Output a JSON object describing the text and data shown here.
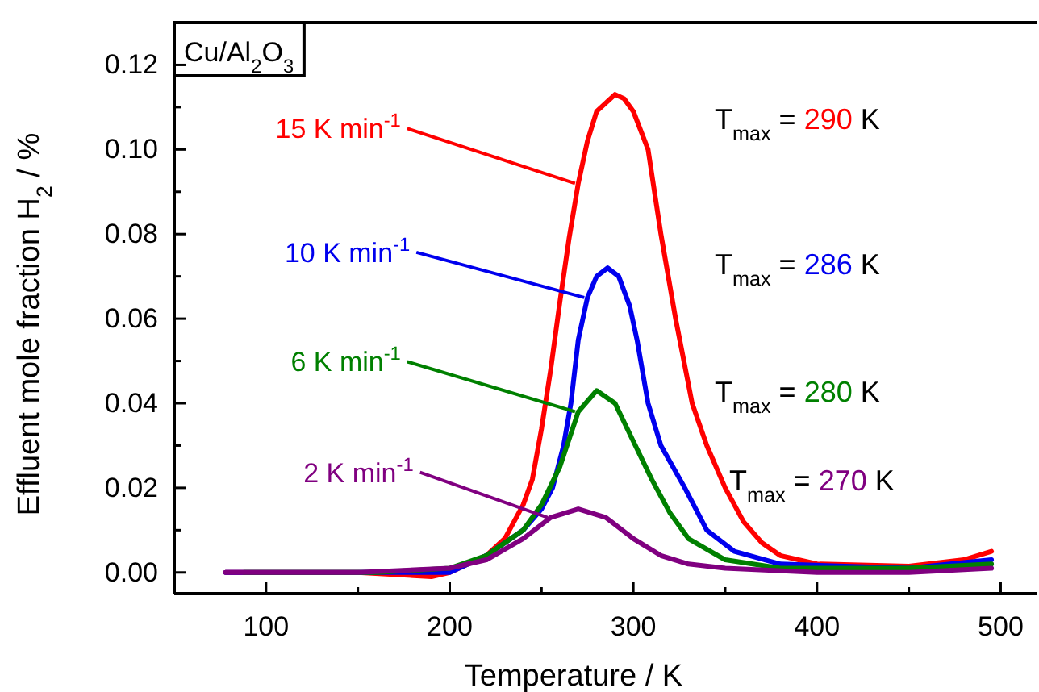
{
  "chart_data": {
    "type": "line",
    "xlabel": "Temperature / K",
    "ylabel": "Effluent mole fraction H$_{2}$ / %",
    "xlim": [
      50,
      520
    ],
    "ylim": [
      -0.005,
      0.13
    ],
    "xticks": [
      100,
      {
        "value": 150,
        "label": null
      },
      200,
      {
        "value": 250,
        "label": null
      },
      300,
      {
        "value": 350,
        "label": null
      },
      400,
      {
        "value": 450,
        "label": null
      },
      500
    ],
    "yticks": [
      {
        "value": 0,
        "label": "0.00"
      },
      {
        "value": 0.01,
        "label": null
      },
      {
        "value": 0.02,
        "label": "0.02"
      },
      {
        "value": 0.03,
        "label": null
      },
      {
        "value": 0.04,
        "label": "0.04"
      },
      {
        "value": 0.05,
        "label": null
      },
      {
        "value": 0.06,
        "label": "0.06"
      },
      {
        "value": 0.07,
        "label": null
      },
      {
        "value": 0.08,
        "label": "0.08"
      },
      {
        "value": 0.09,
        "label": null
      },
      {
        "value": 0.1,
        "label": "0.10"
      },
      {
        "value": 0.11,
        "label": null
      },
      {
        "value": 0.12,
        "label": "0.12"
      }
    ],
    "grid": false,
    "marker": "none",
    "line_style": "solid",
    "series": [
      {
        "name": "15 K min$^{-1}$",
        "color": "#ff0000",
        "x": [
          78,
          120,
          150,
          190,
          200,
          210,
          220,
          230,
          240,
          245,
          250,
          255,
          260,
          265,
          270,
          275,
          280,
          290,
          295,
          300,
          308,
          315,
          323,
          332,
          340,
          350,
          360,
          370,
          380,
          400,
          450,
          480,
          495
        ],
        "values": [
          0,
          0,
          0,
          -0.001,
          0,
          0.002,
          0.004,
          0.008,
          0.016,
          0.022,
          0.034,
          0.048,
          0.064,
          0.079,
          0.092,
          0.102,
          0.109,
          0.113,
          0.112,
          0.109,
          0.1,
          0.08,
          0.06,
          0.04,
          0.03,
          0.02,
          0.012,
          0.007,
          0.004,
          0.002,
          0.0015,
          0.003,
          0.005
        ]
      },
      {
        "name": "10 K min$^{-1}$",
        "color": "#0000ee",
        "x": [
          78,
          120,
          150,
          200,
          220,
          240,
          250,
          256,
          262,
          266,
          270,
          275,
          280,
          286,
          292,
          298,
          302,
          308,
          315,
          328,
          340,
          355,
          380,
          450,
          495
        ],
        "values": [
          0,
          0,
          0,
          0,
          0.004,
          0.01,
          0.015,
          0.02,
          0.03,
          0.04,
          0.055,
          0.065,
          0.07,
          0.072,
          0.07,
          0.063,
          0.055,
          0.04,
          0.03,
          0.02,
          0.01,
          0.005,
          0.002,
          0.001,
          0.003
        ]
      },
      {
        "name": "6 K min$^{-1}$",
        "color": "#008000",
        "x": [
          88,
          135,
          160,
          200,
          220,
          240,
          250,
          260,
          270,
          280,
          290,
          300,
          310,
          320,
          330,
          350,
          380,
          450,
          495
        ],
        "values": [
          0,
          0,
          0,
          0.001,
          0.004,
          0.01,
          0.016,
          0.025,
          0.038,
          0.043,
          0.04,
          0.031,
          0.022,
          0.014,
          0.008,
          0.003,
          0.001,
          0.001,
          0.002
        ]
      },
      {
        "name": "2 K min$^{-1}$",
        "color": "#800080",
        "x": [
          78,
          120,
          150,
          200,
          220,
          240,
          255,
          270,
          285,
          300,
          315,
          330,
          350,
          400,
          450,
          495
        ],
        "values": [
          0,
          0,
          0,
          0.001,
          0.003,
          0.008,
          0.013,
          0.015,
          0.013,
          0.008,
          0.004,
          0.002,
          0.001,
          0,
          0,
          0.001
        ]
      }
    ],
    "annotations": [
      "T$_{max}$ = 290 K",
      "T$_{max}$ = 286 K",
      "T$_{max}$ = 280 K",
      "T$_{max}$ = 270 K",
      "Cu/Al$_{2}$O$_{3}$"
    ]
  }
}
